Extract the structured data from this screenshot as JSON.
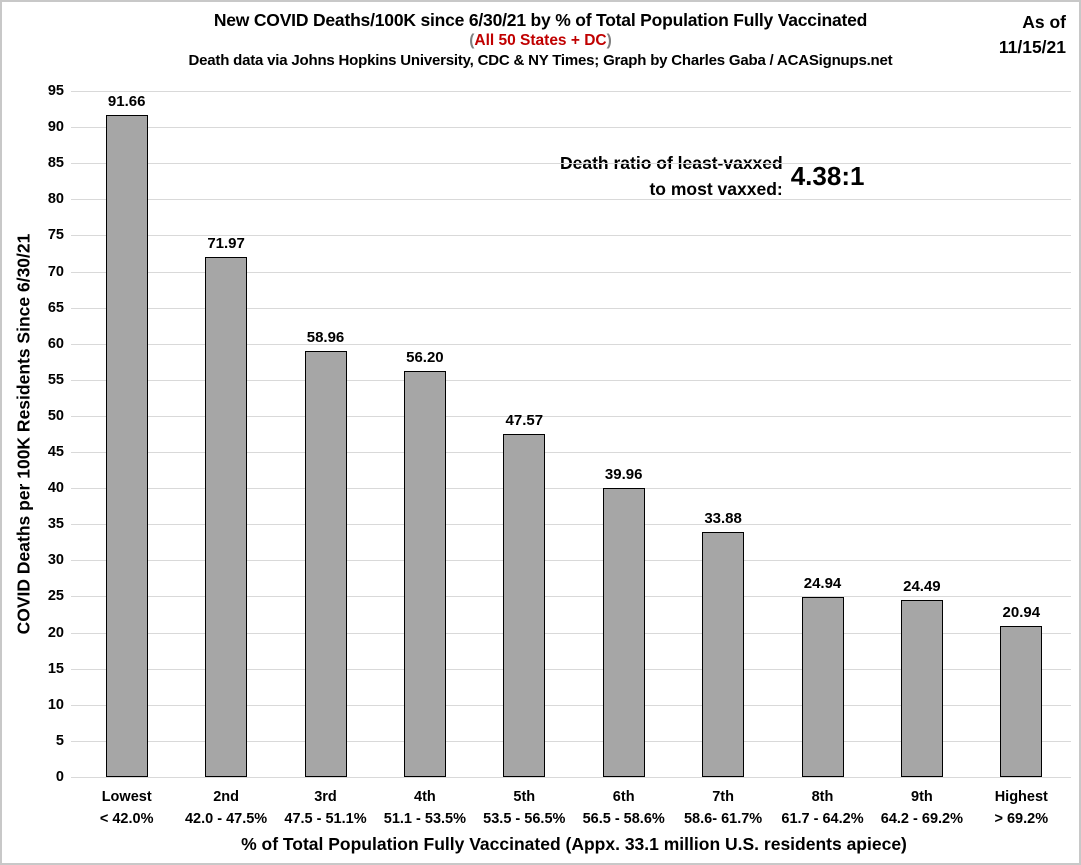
{
  "header": {
    "title": "New COVID Deaths/100K since 6/30/21 by % of Total Population Fully Vaccinated",
    "subtitle_open": "(",
    "subtitle_text": "All 50 States + DC",
    "subtitle_close": ")",
    "credit": "Death data via Johns Hopkins University, CDC & NY Times; Graph by Charles Gaba / ACASignups.net",
    "as_of_line1": "As of",
    "as_of_line2": "11/15/21"
  },
  "annotation": {
    "line1": "Death ratio of least-vaxxed",
    "line2": "to most vaxxed:",
    "ratio": "4.38:1"
  },
  "chart_data": {
    "type": "bar",
    "title": "New COVID Deaths/100K since 6/30/21 by % of Total Population Fully Vaccinated",
    "subtitle": "(All 50 States + DC)",
    "categories": [
      "Lowest",
      "2nd",
      "3rd",
      "4th",
      "5th",
      "6th",
      "7th",
      "8th",
      "9th",
      "Highest"
    ],
    "category_ranges": [
      "< 42.0%",
      "42.0 - 47.5%",
      "47.5 - 51.1%",
      "51.1 - 53.5%",
      "53.5 - 56.5%",
      "56.5 - 58.6%",
      "58.6- 61.7%",
      "61.7 - 64.2%",
      "64.2 - 69.2%",
      "> 69.2%"
    ],
    "values": [
      91.66,
      71.97,
      58.96,
      56.2,
      47.57,
      39.96,
      33.88,
      24.94,
      24.49,
      20.94
    ],
    "value_labels": [
      "91.66",
      "71.97",
      "58.96",
      "56.20",
      "47.57",
      "39.96",
      "33.88",
      "24.94",
      "24.49",
      "20.94"
    ],
    "xlabel": "% of Total Population Fully Vaccinated (Appx. 33.1 million U.S. residents apiece)",
    "ylabel": "COVID Deaths per 100K Residents Since 6/30/21",
    "ylim": [
      0,
      95
    ],
    "ytick_step": 5,
    "grid": true,
    "legend": "none",
    "bar_color": "#A6A6A6",
    "bar_border_color": "#000000",
    "grid_color": "#D9D9D9"
  },
  "colors": {
    "subtitle_red": "#C00000",
    "paren_gray": "#808080",
    "text": "#000000",
    "background": "#FFFFFF",
    "page_border": "#C8C8C8"
  }
}
